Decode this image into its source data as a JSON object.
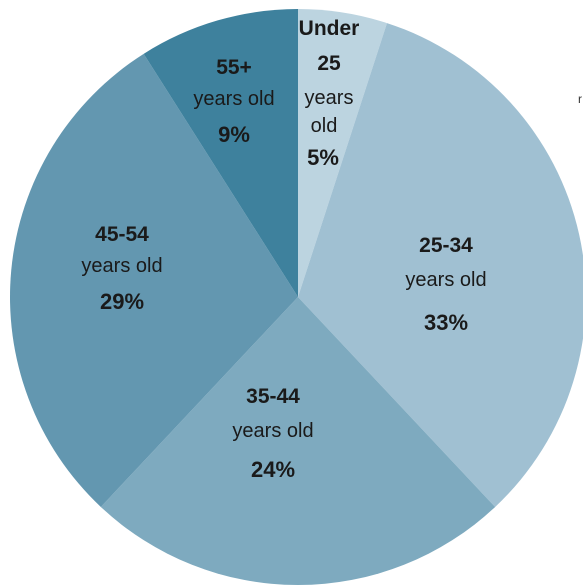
{
  "chart_data": {
    "type": "pie",
    "title": "",
    "start_angle_deg": 0,
    "direction": "clockwise",
    "slices": [
      {
        "name_line1": "Under",
        "name_line2": "25",
        "name_line3": "years",
        "name_line4": "old",
        "value": 5,
        "label": "5%",
        "color": "#bcd4e0"
      },
      {
        "name_line1": "25-34",
        "name_line2": "years old",
        "value": 33,
        "label": "33%",
        "color": "#a0c0d2"
      },
      {
        "name_line1": "35-44",
        "name_line2": "years old",
        "value": 24,
        "label": "24%",
        "color": "#7eaabf"
      },
      {
        "name_line1": "45-54",
        "name_line2": "years old",
        "value": 29,
        "label": "29%",
        "color": "#6397b0"
      },
      {
        "name_line1": "55+",
        "name_line2": "years old",
        "value": 9,
        "label": "9%",
        "color": "#3e819d"
      }
    ]
  },
  "stray_text": "r"
}
